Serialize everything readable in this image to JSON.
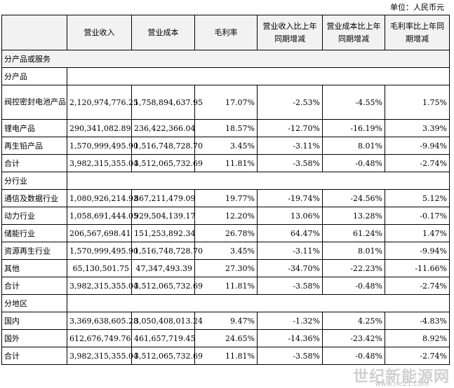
{
  "unit_note": "单位：人民币元",
  "headers": [
    "",
    "营业收入",
    "营业成本",
    "毛利率",
    [
      "营业收入比上年",
      "同期增减"
    ],
    [
      "营业成本比上年",
      "同期增减"
    ],
    [
      "毛利率比上年同",
      "期增减"
    ]
  ],
  "section_title": "分产品或服务",
  "groups": [
    {
      "title": "分产品",
      "rows": [
        [
          "阀控密封电池产品",
          "2,120,974,776.25",
          "1,758,894,637.95",
          "17.07%",
          "-2.53%",
          "-4.55%",
          "1.75%"
        ],
        [
          "锂电产品",
          "290,341,082.89",
          "236,422,366.04",
          "18.57%",
          "-12.70%",
          "-16.19%",
          "3.39%"
        ],
        [
          "再生铅产品",
          "1,570,999,495.90",
          "1,516,748,728.70",
          "3.45%",
          "-3.11%",
          "8.01%",
          "-9.94%"
        ],
        [
          "合计",
          "3,982,315,355.04",
          "3,512,065,732.69",
          "11.81%",
          "-3.58%",
          "-0.48%",
          "-2.74%"
        ]
      ]
    },
    {
      "title": "分行业",
      "rows": [
        [
          "通信及数据行业",
          "1,080,926,214.93",
          "867,211,479.09",
          "19.77%",
          "-19.74%",
          "-24.56%",
          "5.12%"
        ],
        [
          "动力行业",
          "1,058,691,444.05",
          "929,504,139.17",
          "12.20%",
          "13.06%",
          "13.28%",
          "-0.17%"
        ],
        [
          "储能行业",
          "206,567,698.41",
          "151,253,892.34",
          "26.78%",
          "64.47%",
          "61.24%",
          "1.47%"
        ],
        [
          "资源再生行业",
          "1,570,999,495.90",
          "1,516,748,728.70",
          "3.45%",
          "-3.11%",
          "8.01%",
          "-9.94%"
        ],
        [
          "其他",
          "65,130,501.75",
          "47,347,493.39",
          "27.30%",
          "-34.70%",
          "-22.23%",
          "-11.66%"
        ],
        [
          "合计",
          "3,982,315,355.04",
          "3,512,065,732.69",
          "11.81%",
          "-3.58%",
          "-0.48%",
          "-2.74%"
        ]
      ]
    },
    {
      "title": "分地区",
      "rows": [
        [
          "国内",
          "3,369,638,605.28",
          "3,050,408,013.24",
          "9.47%",
          "-1.32%",
          "4.25%",
          "-4.83%"
        ],
        [
          "国外",
          "612,676,749.76",
          "461,657,719.45",
          "24.65%",
          "-14.36%",
          "-23.42%",
          "8.92%"
        ],
        [
          "合计",
          "3,982,315,355.04",
          "3,512,065,732.69",
          "11.81%",
          "-3.58%",
          "-0.48%",
          "-2.74%"
        ]
      ]
    }
  ],
  "watermark": {
    "main": "世纪新能源网",
    "sub": "www.ne21.com"
  }
}
